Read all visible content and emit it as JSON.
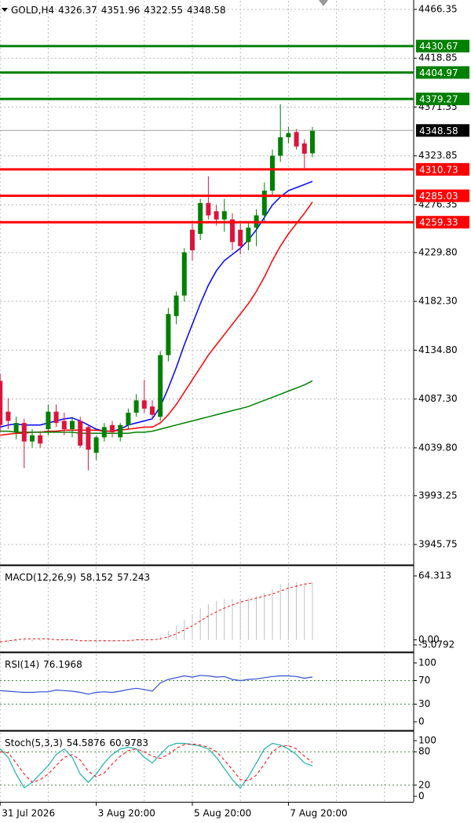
{
  "chart_data": [
    {
      "type": "candlestick",
      "title": "GOLD,H4",
      "categories": [
        "31 Jul 2026",
        null,
        null,
        null,
        null,
        null,
        null,
        null,
        null,
        null,
        null,
        null,
        "3 Aug 20:00",
        null,
        null,
        null,
        null,
        null,
        null,
        null,
        null,
        null,
        null,
        null,
        "5 Aug 20:00",
        null,
        null,
        null,
        null,
        null,
        null,
        null,
        null,
        null,
        null,
        null,
        "7 Aug 20:00",
        null,
        null,
        null
      ],
      "open": [
        4105,
        4075,
        4055,
        4064,
        4046,
        4052,
        4058,
        4075,
        4066,
        4058,
        4066,
        4060,
        4035,
        4050,
        4062,
        4050,
        4062,
        4074,
        4086,
        4080,
        4070,
        4130,
        4168,
        4188,
        4252,
        4248,
        4278,
        4270,
        4262,
        4262,
        4252,
        4240,
        4254,
        4266,
        4290,
        4324,
        4342,
        4347,
        4336,
        4326.37
      ],
      "high": [
        4112,
        4088,
        4070,
        4068,
        4058,
        4056,
        4082,
        4082,
        4074,
        4070,
        4070,
        4062,
        4052,
        4064,
        4066,
        4064,
        4078,
        4092,
        4106,
        4086,
        4134,
        4176,
        4192,
        4234,
        4258,
        4282,
        4304,
        4276,
        4282,
        4268,
        4258,
        4260,
        4272,
        4298,
        4330,
        4374,
        4352,
        4350,
        4340,
        4351.96
      ],
      "low": [
        4055,
        4058,
        4048,
        4020,
        4040,
        4040,
        4052,
        4060,
        4052,
        4050,
        4040,
        4018,
        4028,
        4046,
        4050,
        4046,
        4058,
        4070,
        4074,
        4068,
        4066,
        4124,
        4160,
        4182,
        4222,
        4242,
        4262,
        4256,
        4250,
        4232,
        4228,
        4232,
        4236,
        4260,
        4286,
        4318,
        4336,
        4330,
        4312,
        4322.55
      ],
      "close": [
        4062,
        4066,
        4064,
        4046,
        4052,
        4044,
        4075,
        4064,
        4058,
        4066,
        4042,
        4038,
        4050,
        4060,
        4055,
        4062,
        4074,
        4086,
        4078,
        4072,
        4130,
        4170,
        4188,
        4230,
        4232,
        4278,
        4266,
        4262,
        4270,
        4240,
        4236,
        4254,
        4266,
        4290,
        4324,
        4342,
        4346,
        4333,
        4326,
        4348.58
      ],
      "up_color": "#008000",
      "down_color": "#dc143c",
      "series": [
        {
          "color": "#0000ff",
          "values": [
            4060,
            4062,
            4063,
            4062,
            4062,
            4062,
            4064,
            4066,
            4068,
            4069,
            4066,
            4062,
            4058,
            4056,
            4056,
            4058,
            4062,
            4064,
            4066,
            4068,
            4080,
            4098,
            4118,
            4140,
            4160,
            4180,
            4198,
            4212,
            4222,
            4228,
            4234,
            4242,
            4252,
            4264,
            4276,
            4284,
            4290,
            4293,
            4296,
            4299
          ]
        },
        {
          "color": "#ff0000",
          "values": [
            4052,
            4053,
            4054,
            4054,
            4055,
            4055,
            4056,
            4056,
            4057,
            4057,
            4057,
            4057,
            4057,
            4056,
            4056,
            4057,
            4058,
            4059,
            4060,
            4060,
            4064,
            4072,
            4082,
            4094,
            4106,
            4118,
            4130,
            4140,
            4150,
            4160,
            4170,
            4180,
            4192,
            4206,
            4222,
            4236,
            4248,
            4258,
            4268,
            4279
          ]
        },
        {
          "color": "#008000",
          "values": [
            4056,
            4056,
            4055,
            4055,
            4055,
            4055,
            4055,
            4055,
            4055,
            4055,
            4054,
            4054,
            4054,
            4054,
            4054,
            4054,
            4054,
            4055,
            4055,
            4056,
            4058,
            4060,
            4062,
            4064,
            4066,
            4068,
            4070,
            4072,
            4074,
            4076,
            4078,
            4080,
            4083,
            4086,
            4089,
            4092,
            4095,
            4098,
            4101,
            4105
          ]
        }
      ],
      "levels": [
        {
          "value": 4430.67,
          "color": "#008000"
        },
        {
          "value": 4404.97,
          "color": "#008000"
        },
        {
          "value": 4379.27,
          "color": "#008000"
        },
        {
          "value": 4310.73,
          "color": "#ff0000"
        },
        {
          "value": 4285.03,
          "color": "#ff0000"
        },
        {
          "value": 4259.33,
          "color": "#ff0000"
        }
      ],
      "ylim": [
        3926.7,
        4475.5
      ],
      "yticks": [
        4466.35,
        4418.85,
        4371.35,
        4323.85,
        4276.35,
        {
          "value": 4229.8,
          "label": "4229.80"
        },
        {
          "value": 4182.3,
          "label": "4182.30"
        },
        {
          "value": 4134.8,
          "label": "4134.80"
        },
        {
          "value": 4087.3,
          "label": "4087.30"
        },
        {
          "value": 4039.8,
          "label": "4039.80"
        },
        3993.25,
        3945.75
      ],
      "grid": true
    },
    {
      "type": "macd",
      "title": "MACD(12,26,9)",
      "histogram": {
        "color": "#c0c0c0",
        "values": [
          -3,
          -3,
          -2,
          -2,
          -2,
          -1,
          -1,
          0,
          0,
          0,
          -1,
          -2,
          -2,
          -2,
          -2,
          -1,
          0,
          1,
          1,
          1,
          4,
          9,
          14,
          20,
          26,
          32,
          36,
          39,
          41,
          41,
          41,
          42,
          44,
          47,
          51,
          56,
          58,
          58,
          57,
          58.152
        ]
      },
      "signal": {
        "color": "#ff0000",
        "values": [
          -2,
          -1,
          0,
          1,
          1,
          1,
          1,
          0,
          0,
          0,
          -1,
          -1,
          -1,
          -1,
          -1,
          -1,
          -1,
          0,
          0,
          0,
          1,
          3,
          6,
          10,
          14,
          19,
          24,
          28,
          32,
          35,
          38,
          40,
          42,
          44,
          46,
          49,
          52,
          54,
          56,
          57.243
        ]
      },
      "ylim": [
        -11.4,
        73.8
      ],
      "yticks": [
        64.313,
        {
          "value": 0,
          "label": "0.00"
        },
        -5.0792
      ]
    },
    {
      "type": "line",
      "title": "RSI(14)",
      "series": [
        {
          "color": "#2f4fd0",
          "values": [
            53,
            52,
            51,
            50,
            50,
            51,
            51,
            54,
            53,
            52,
            50,
            47,
            50,
            51,
            50,
            52,
            55,
            57,
            55,
            52,
            66,
            72,
            75,
            78,
            76,
            79,
            78,
            76,
            77,
            72,
            70,
            72,
            73,
            75,
            77,
            78,
            78,
            77,
            74,
            76.1968
          ]
        }
      ],
      "levels": [
        70,
        30
      ],
      "ylim": [
        -13.3,
        116
      ],
      "yticks": [
        100,
        70,
        30,
        0
      ]
    },
    {
      "type": "line",
      "title": "Stoch(5,3,3)",
      "series": [
        {
          "color": "#20b2aa",
          "values": [
            85,
            70,
            40,
            15,
            25,
            40,
            55,
            75,
            85,
            70,
            40,
            25,
            40,
            60,
            75,
            85,
            88,
            85,
            70,
            60,
            75,
            90,
            95,
            95,
            93,
            90,
            85,
            70,
            50,
            30,
            15,
            35,
            60,
            85,
            95,
            92,
            85,
            75,
            60,
            54.5876
          ]
        },
        {
          "color": "#ff0000",
          "dashed": true,
          "values": [
            80,
            78,
            60,
            40,
            25,
            30,
            40,
            55,
            70,
            75,
            65,
            45,
            35,
            42,
            58,
            72,
            82,
            85,
            80,
            72,
            68,
            75,
            86,
            93,
            94,
            92,
            88,
            80,
            65,
            48,
            30,
            28,
            38,
            58,
            80,
            90,
            91,
            85,
            72,
            60.9783
          ]
        }
      ],
      "levels": [
        80,
        20
      ],
      "ylim": [
        -9.9,
        115.5
      ],
      "yticks": [
        100,
        80,
        20,
        0
      ]
    }
  ]
}
